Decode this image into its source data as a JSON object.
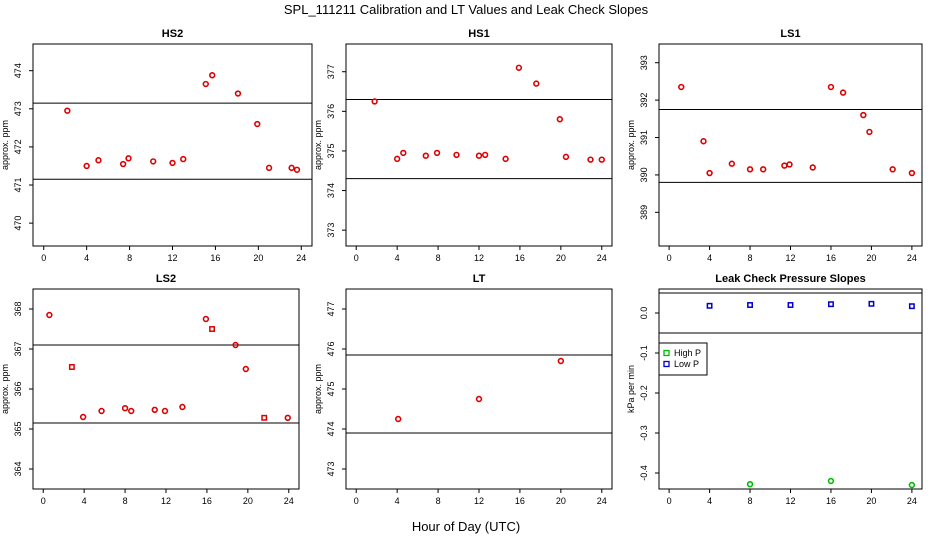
{
  "page": {
    "title": "SPL_111211  Calibration and LT Values and Leak Check Slopes",
    "xlabel": "Hour of Day (UTC)"
  },
  "chart_data": [
    {
      "type": "scatter",
      "title": "HS2",
      "ylabel": "approx. ppm",
      "xlim": [
        -1,
        25
      ],
      "ylim": [
        469.4,
        474.7
      ],
      "xticks": [
        "0",
        "4",
        "8",
        "12",
        "16",
        "20",
        "24"
      ],
      "yticks": [
        "470",
        "471",
        "472",
        "473",
        "474"
      ],
      "hlines": [
        473.15,
        471.15
      ],
      "color": "#dd0000",
      "series": [
        {
          "marker": "circle",
          "x": [
            2.2,
            4.0,
            5.1,
            7.4,
            7.9,
            10.2,
            12.0,
            13.0,
            15.1,
            15.7,
            18.1,
            19.9,
            21.0,
            23.1,
            23.6
          ],
          "y": [
            472.95,
            471.5,
            471.65,
            471.55,
            471.7,
            471.62,
            471.58,
            471.68,
            473.65,
            473.88,
            473.4,
            472.6,
            471.45,
            471.45,
            471.4
          ]
        }
      ]
    },
    {
      "type": "scatter",
      "title": "HS1",
      "ylabel": "approx. ppm",
      "xlim": [
        -1,
        25
      ],
      "ylim": [
        372.6,
        377.7
      ],
      "xticks": [
        "0",
        "4",
        "8",
        "12",
        "16",
        "20",
        "24"
      ],
      "yticks": [
        "373",
        "374",
        "375",
        "376",
        "377"
      ],
      "hlines": [
        376.3,
        374.3
      ],
      "color": "#dd0000",
      "series": [
        {
          "marker": "circle",
          "x": [
            1.8,
            4.0,
            4.6,
            6.8,
            7.9,
            9.8,
            12.0,
            12.6,
            14.6,
            15.9,
            17.6,
            19.9,
            20.5,
            22.9,
            24.0
          ],
          "y": [
            376.25,
            374.8,
            374.95,
            374.88,
            374.95,
            374.9,
            374.88,
            374.9,
            374.8,
            377.1,
            376.7,
            375.8,
            374.85,
            374.78,
            374.78
          ]
        }
      ]
    },
    {
      "type": "scatter",
      "title": "LS1",
      "ylabel": "approx. ppm",
      "xlim": [
        -1,
        25
      ],
      "ylim": [
        388.1,
        393.5
      ],
      "xticks": [
        "0",
        "4",
        "8",
        "12",
        "16",
        "20",
        "24"
      ],
      "yticks": [
        "389",
        "390",
        "391",
        "392",
        "393"
      ],
      "hlines": [
        391.75,
        389.8
      ],
      "color": "#dd0000",
      "series": [
        {
          "marker": "circle",
          "x": [
            1.2,
            3.4,
            4.0,
            6.2,
            8.0,
            9.3,
            11.4,
            11.9,
            14.2,
            16.0,
            17.2,
            19.2,
            19.8,
            22.1,
            24.0
          ],
          "y": [
            392.35,
            390.9,
            390.05,
            390.3,
            390.15,
            390.15,
            390.25,
            390.28,
            390.2,
            392.35,
            392.2,
            391.6,
            391.15,
            390.15,
            390.05
          ]
        }
      ]
    },
    {
      "type": "scatter",
      "title": "LS2",
      "ylabel": "approx. ppm",
      "xlim": [
        -1,
        25
      ],
      "ylim": [
        363.5,
        368.5
      ],
      "xticks": [
        "0",
        "4",
        "8",
        "12",
        "16",
        "20",
        "24"
      ],
      "yticks": [
        "364",
        "365",
        "366",
        "367",
        "368"
      ],
      "hlines": [
        367.1,
        365.15
      ],
      "color": "#dd0000",
      "series": [
        {
          "marker": "circle",
          "x": [
            0.6,
            3.9,
            5.7,
            8.0,
            8.6,
            10.9,
            11.9,
            13.6,
            15.9,
            18.8,
            19.8,
            23.9
          ],
          "y": [
            367.85,
            365.3,
            365.45,
            365.52,
            365.45,
            365.48,
            365.45,
            365.55,
            367.75,
            367.1,
            366.5,
            365.28
          ]
        },
        {
          "marker": "square",
          "x": [
            2.8,
            16.5,
            21.6
          ],
          "y": [
            366.55,
            367.5,
            365.28
          ]
        }
      ]
    },
    {
      "type": "scatter",
      "title": "LT",
      "ylabel": "approx. ppm",
      "xlim": [
        -1,
        25
      ],
      "ylim": [
        472.5,
        477.5
      ],
      "xticks": [
        "0",
        "4",
        "8",
        "12",
        "16",
        "20",
        "24"
      ],
      "yticks": [
        "473",
        "474",
        "475",
        "476",
        "477"
      ],
      "hlines": [
        475.85,
        473.9
      ],
      "color": "#dd0000",
      "series": [
        {
          "marker": "circle",
          "x": [
            4.1,
            12.0,
            20.0
          ],
          "y": [
            474.25,
            474.75,
            475.7
          ]
        }
      ]
    },
    {
      "type": "scatter",
      "title": "Leak Check Pressure Slopes",
      "ylabel": "kPa per min",
      "xlim": [
        -1,
        25
      ],
      "ylim": [
        -0.44,
        0.06
      ],
      "xticks": [
        "0",
        "4",
        "8",
        "12",
        "16",
        "20",
        "24"
      ],
      "yticks": [
        "-0.4",
        "-0.3",
        "-0.2",
        "-0.1",
        "0.0"
      ],
      "ytick_values": [
        -0.4,
        -0.3,
        -0.2,
        -0.1,
        0.0
      ],
      "hlines": [
        0.05,
        -0.05
      ],
      "legend": {
        "placement": "middle-left",
        "entries": [
          {
            "label": "High P",
            "color": "#00bb00",
            "marker": "square"
          },
          {
            "label": "Low P",
            "color": "#0000cc",
            "marker": "square"
          }
        ]
      },
      "series": [
        {
          "name": "High P",
          "color": "#00bb00",
          "marker": "circle",
          "x": [
            8,
            16,
            24
          ],
          "y": [
            -0.428,
            -0.42,
            -0.43
          ]
        },
        {
          "name": "Low P",
          "color": "#0000cc",
          "marker": "square",
          "x": [
            4,
            8,
            12,
            16,
            20,
            24
          ],
          "y": [
            0.018,
            0.02,
            0.02,
            0.022,
            0.023,
            0.017
          ]
        }
      ]
    }
  ]
}
